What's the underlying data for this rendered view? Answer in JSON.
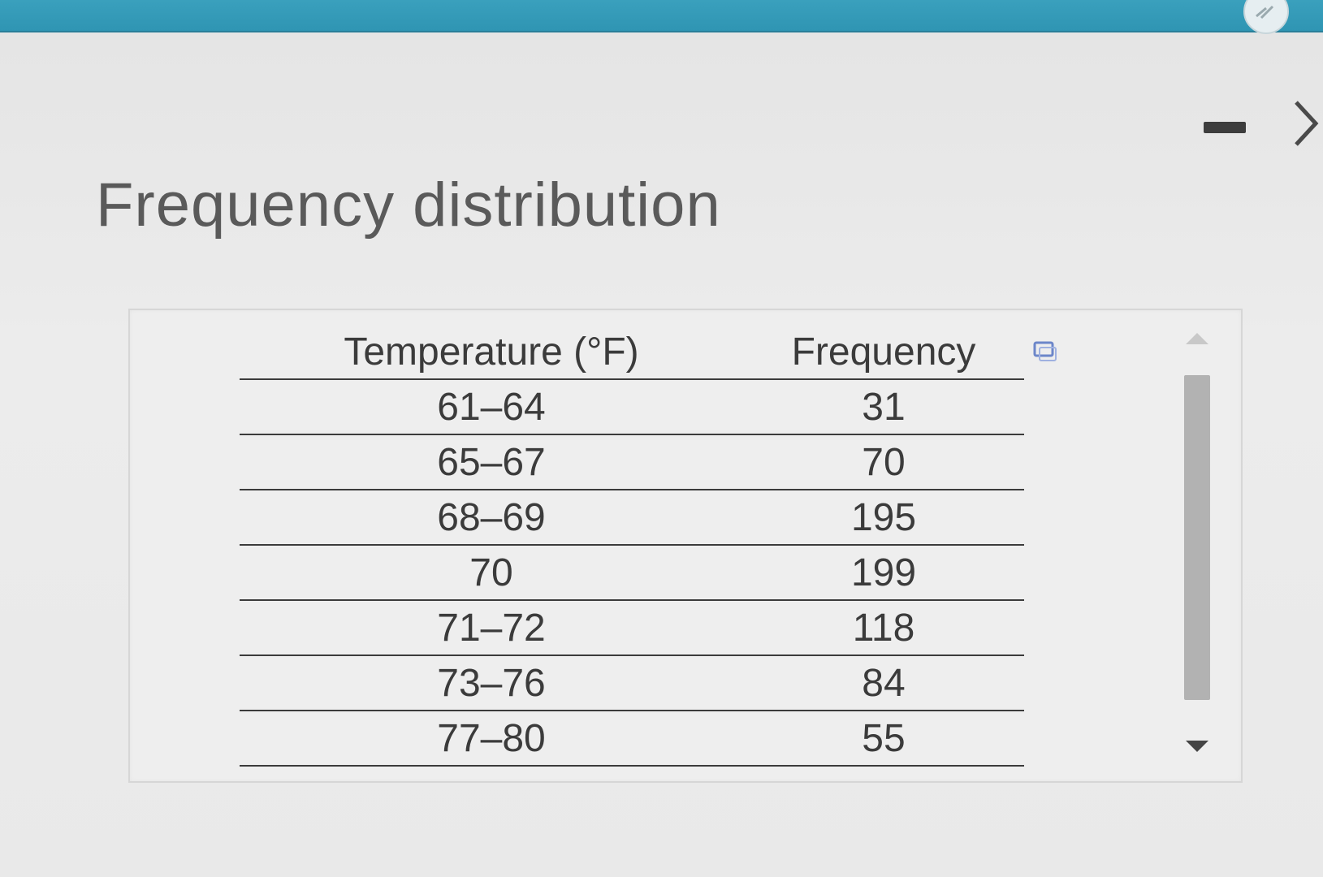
{
  "header": {
    "title": "Frequency distribution"
  },
  "table": {
    "columns": [
      "Temperature (°F)",
      "Frequency"
    ],
    "rows": [
      {
        "temperature": "61–64",
        "frequency": "31"
      },
      {
        "temperature": "65–67",
        "frequency": "70"
      },
      {
        "temperature": "68–69",
        "frequency": "195"
      },
      {
        "temperature": "70",
        "frequency": "199"
      },
      {
        "temperature": "71–72",
        "frequency": "118"
      },
      {
        "temperature": "73–76",
        "frequency": "84"
      },
      {
        "temperature": "77–80",
        "frequency": "55"
      }
    ]
  },
  "icons": {
    "minimize": "minimize-icon",
    "next": "chevron-right-icon",
    "copy": "copy-icon",
    "top_right": "circle-icon"
  },
  "colors": {
    "top_bar": "#3aa0bd",
    "text": "#3b3b3b",
    "title": "#5a5a5a"
  }
}
